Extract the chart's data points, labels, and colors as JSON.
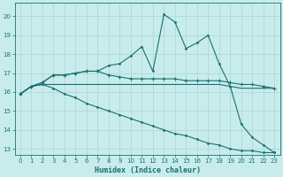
{
  "xlabel": "Humidex (Indice chaleur)",
  "bg_color": "#c8ecec",
  "grid_color": "#b0d8d8",
  "line_color": "#1a7070",
  "xlim": [
    -0.5,
    23.5
  ],
  "ylim": [
    12.7,
    20.7
  ],
  "yticks": [
    13,
    14,
    15,
    16,
    17,
    18,
    19,
    20
  ],
  "xticks": [
    0,
    1,
    2,
    3,
    4,
    5,
    6,
    7,
    8,
    9,
    10,
    11,
    12,
    13,
    14,
    15,
    16,
    17,
    18,
    19,
    20,
    21,
    22,
    23
  ],
  "s1_x": [
    0,
    1,
    2,
    3,
    4,
    5,
    6,
    7,
    8,
    9,
    10,
    11,
    12,
    13,
    14,
    15,
    16,
    17,
    18,
    19,
    20,
    21,
    22,
    23
  ],
  "s1_y": [
    15.9,
    16.3,
    16.4,
    16.4,
    16.4,
    16.4,
    16.4,
    16.4,
    16.4,
    16.4,
    16.4,
    16.4,
    16.4,
    16.4,
    16.4,
    16.4,
    16.4,
    16.4,
    16.4,
    16.3,
    16.2,
    16.2,
    16.2,
    16.2
  ],
  "s2_x": [
    0,
    1,
    2,
    3,
    4,
    5,
    6,
    7,
    8,
    9,
    10,
    11,
    12,
    13,
    14,
    15,
    16,
    17,
    18,
    19,
    20,
    21,
    22,
    23
  ],
  "s2_y": [
    15.9,
    16.3,
    16.5,
    16.9,
    16.9,
    17.0,
    17.1,
    17.1,
    16.9,
    16.8,
    16.7,
    16.7,
    16.7,
    16.7,
    16.7,
    16.6,
    16.6,
    16.6,
    16.6,
    16.5,
    16.4,
    16.4,
    16.3,
    16.2
  ],
  "s3_x": [
    0,
    1,
    2,
    3,
    4,
    5,
    6,
    7,
    8,
    9,
    10,
    11,
    12,
    13,
    14,
    15,
    16,
    17,
    18,
    19,
    20,
    21,
    22,
    23
  ],
  "s3_y": [
    15.9,
    16.3,
    16.5,
    16.9,
    16.9,
    17.0,
    17.1,
    17.1,
    17.4,
    17.5,
    17.9,
    18.4,
    17.1,
    20.1,
    19.7,
    18.3,
    18.6,
    19.0,
    17.5,
    16.3,
    14.3,
    13.6,
    13.2,
    12.8
  ],
  "s4_x": [
    0,
    1,
    2,
    3,
    4,
    5,
    6,
    7,
    8,
    9,
    10,
    11,
    12,
    13,
    14,
    15,
    16,
    17,
    18,
    19,
    20,
    21,
    22,
    23
  ],
  "s4_y": [
    15.9,
    16.3,
    16.4,
    16.2,
    15.9,
    15.7,
    15.4,
    15.2,
    15.0,
    14.8,
    14.6,
    14.4,
    14.2,
    14.0,
    13.8,
    13.7,
    13.5,
    13.3,
    13.2,
    13.0,
    12.9,
    12.9,
    12.8,
    12.8
  ]
}
